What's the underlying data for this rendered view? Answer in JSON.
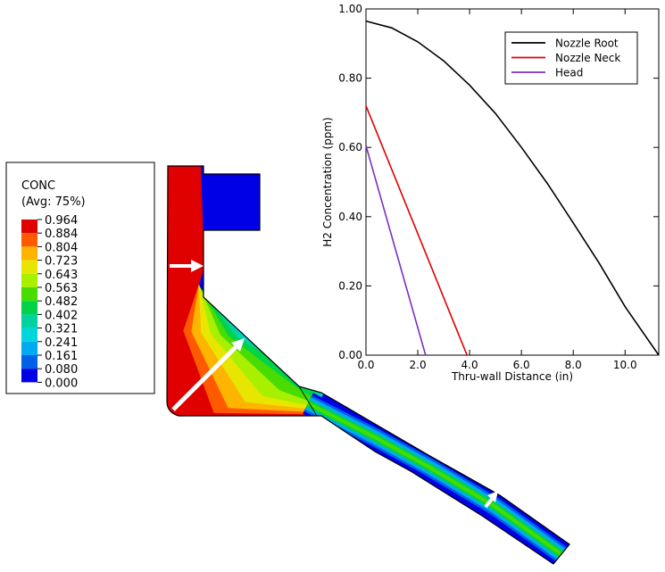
{
  "contour_legend": {
    "variable": "CONC",
    "averaging": "(Avg: 75%)",
    "levels": [
      "0.964",
      "0.884",
      "0.804",
      "0.723",
      "0.643",
      "0.563",
      "0.482",
      "0.402",
      "0.321",
      "0.241",
      "0.161",
      "0.080",
      "0.000"
    ],
    "colors": [
      "#e00000",
      "#ff5a00",
      "#ffb400",
      "#e8e600",
      "#a8f000",
      "#48dc00",
      "#00d24a",
      "#00d2a0",
      "#00d6dc",
      "#00aaf0",
      "#0060e6",
      "#0000e6"
    ]
  },
  "chart_data": {
    "type": "line",
    "xlabel": "Thru-wall Distance (in)",
    "ylabel": "H2 Concentration (ppm)",
    "xlim": [
      0,
      11.3
    ],
    "ylim": [
      0,
      1.0
    ],
    "x_ticks": [
      "0.0",
      "2.0",
      "4.0",
      "6.0",
      "8.0",
      "10.0"
    ],
    "x_tick_values": [
      0,
      2,
      4,
      6,
      8,
      10
    ],
    "y_ticks": [
      "0.00",
      "0.20",
      "0.40",
      "0.60",
      "0.80",
      "1.00"
    ],
    "y_tick_values": [
      0,
      0.2,
      0.4,
      0.6,
      0.8,
      1.0
    ],
    "grid": false,
    "legend_position": "top-right",
    "series": [
      {
        "name": "Nozzle Root",
        "color": "#000000",
        "x": [
          0,
          1,
          2,
          3,
          4,
          5,
          6,
          7,
          8,
          9,
          10,
          11.3
        ],
        "y": [
          0.965,
          0.945,
          0.905,
          0.85,
          0.78,
          0.698,
          0.6,
          0.496,
          0.382,
          0.266,
          0.14,
          0.0
        ]
      },
      {
        "name": "Nozzle Neck",
        "color": "#e00000",
        "x": [
          0,
          3.9
        ],
        "y": [
          0.72,
          0.0
        ]
      },
      {
        "name": "Head",
        "color": "#7b2fbf",
        "x": [
          0,
          2.3
        ],
        "y": [
          0.605,
          0.0
        ]
      }
    ]
  }
}
